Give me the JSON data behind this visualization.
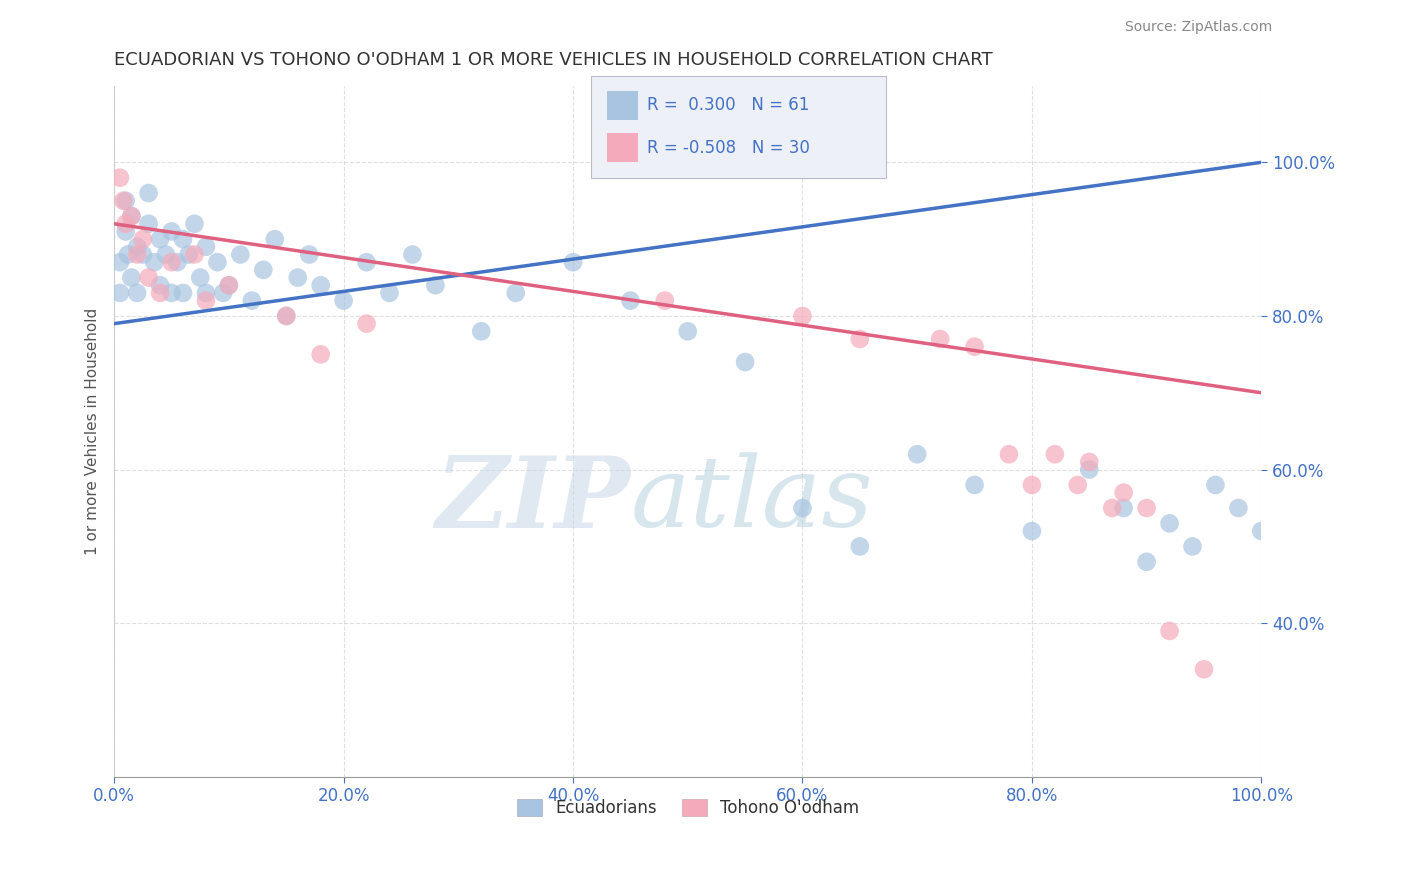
{
  "title": "ECUADORIAN VS TOHONO O'ODHAM 1 OR MORE VEHICLES IN HOUSEHOLD CORRELATION CHART",
  "source": "Source: ZipAtlas.com",
  "xlabel_blue": "Ecuadorians",
  "xlabel_pink": "Tohono O'odham",
  "ylabel": "1 or more Vehicles in Household",
  "blue_R": 0.3,
  "blue_N": 61,
  "pink_R": -0.508,
  "pink_N": 30,
  "blue_color": "#A8C4E0",
  "pink_color": "#F4AABA",
  "blue_line_color": "#4472C4",
  "pink_line_color": "#E06080",
  "background_color": "#FFFFFF",
  "blue_scatter_x": [
    0.5,
    0.5,
    1.0,
    1.0,
    1.2,
    1.5,
    1.5,
    2.0,
    2.0,
    2.5,
    3.0,
    3.0,
    3.5,
    4.0,
    4.0,
    4.5,
    5.0,
    5.0,
    5.5,
    6.0,
    6.0,
    6.5,
    7.0,
    7.5,
    8.0,
    8.0,
    9.0,
    9.5,
    10.0,
    11.0,
    12.0,
    13.0,
    14.0,
    15.0,
    16.0,
    17.0,
    18.0,
    20.0,
    22.0,
    24.0,
    26.0,
    28.0,
    32.0,
    35.0,
    40.0,
    45.0,
    50.0,
    55.0,
    60.0,
    65.0,
    70.0,
    75.0,
    80.0,
    85.0,
    88.0,
    90.0,
    92.0,
    94.0,
    96.0,
    98.0,
    100.0
  ],
  "blue_scatter_y": [
    83,
    87,
    91,
    95,
    88,
    93,
    85,
    89,
    83,
    88,
    92,
    96,
    87,
    90,
    84,
    88,
    91,
    83,
    87,
    90,
    83,
    88,
    92,
    85,
    89,
    83,
    87,
    83,
    84,
    88,
    82,
    86,
    90,
    80,
    85,
    88,
    84,
    82,
    87,
    83,
    88,
    84,
    78,
    83,
    87,
    82,
    78,
    74,
    55,
    50,
    62,
    58,
    52,
    60,
    55,
    48,
    53,
    50,
    58,
    55,
    52
  ],
  "pink_scatter_x": [
    0.5,
    0.8,
    1.0,
    1.5,
    2.0,
    2.5,
    3.0,
    4.0,
    5.0,
    7.0,
    8.0,
    10.0,
    15.0,
    18.0,
    22.0,
    48.0,
    60.0,
    65.0,
    72.0,
    75.0,
    78.0,
    80.0,
    82.0,
    84.0,
    85.0,
    87.0,
    88.0,
    90.0,
    92.0,
    95.0
  ],
  "pink_scatter_y": [
    98,
    95,
    92,
    93,
    88,
    90,
    85,
    83,
    87,
    88,
    82,
    84,
    80,
    75,
    79,
    82,
    80,
    77,
    77,
    76,
    62,
    58,
    62,
    58,
    61,
    55,
    57,
    55,
    39,
    34
  ],
  "blue_line_x0": 0,
  "blue_line_y0": 79,
  "blue_line_x1": 100,
  "blue_line_y1": 100,
  "pink_line_x0": 0,
  "pink_line_y0": 92,
  "pink_line_x1": 100,
  "pink_line_y1": 70,
  "xlim": [
    0,
    100
  ],
  "ylim": [
    20,
    110
  ],
  "xtick_labels": [
    "0.0%",
    "20.0%",
    "40.0%",
    "60.0%",
    "80.0%",
    "100.0%"
  ],
  "xtick_vals": [
    0,
    20,
    40,
    60,
    80,
    100
  ],
  "ytick_labels": [
    "40.0%",
    "60.0%",
    "80.0%",
    "100.0%"
  ],
  "ytick_vals": [
    40,
    60,
    80,
    100
  ],
  "grid_color": "#CCCCCC",
  "watermark_zip": "ZIP",
  "watermark_atlas": "atlas",
  "legend_box_color": "#EEF0F8"
}
